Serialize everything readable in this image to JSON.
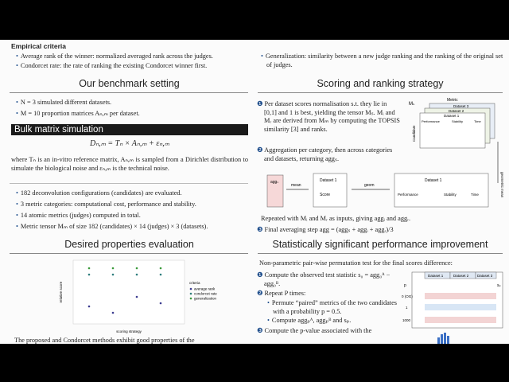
{
  "empirical_criteria": {
    "title": "Empirical criteria",
    "items": [
      "Average rank of the winner: normalized averaged rank across the judges.",
      "Condorcet rate: the rate of ranking the existing Condorcet winner first.",
      "Generalization: similarity between a new judge ranking and the ranking of the original set of judges."
    ]
  },
  "benchmark": {
    "title": "Our benchmark setting",
    "items": [
      "N = 3 simulated different datasets.",
      "M = 10 proportion matrices Aₙ,ₘ per dataset."
    ]
  },
  "bulk": {
    "title": "Bulk matrix simulation",
    "equation": "Dₙ,ₘ = Tₙ × Aₙ,ₘ + εₙ,ₘ",
    "text": "where Tₙ is an in-vitro reference matrix, Aₙ,ₘ is sampled from a Dirichlet distribution to simulate the biological noise and εₙ,ₘ is the technical noise.",
    "items": [
      "182 deconvolution configurations (candidates) are evaluated.",
      "3 metric categories: computational cost, performance and stability.",
      "14 atomic metrics (judges) computed in total.",
      "Metric tensor Mₘ of size 182 (candidates) × 14 (judges) × 3 (datasets)."
    ]
  },
  "desired": {
    "title": "Desired properties evaluation",
    "figure": {
      "y_label": "relative score",
      "x_label": "scoring strategy",
      "legend_title": "criteria",
      "legend": [
        "average rank",
        "condorcet rate",
        "generalization"
      ]
    },
    "footer": "The proposed and Condorcet methods exhibit good properties of the"
  },
  "scoring": {
    "title": "Scoring and ranking strategy",
    "steps": [
      "Per dataset scores normalisation s.t. they lie in [0,1] and 1 is best, yielding the tensor Mₛ. Mᵢ and Mᵣ are derived from Mₘ by computing the TOPSIS similarity [3] and ranks.",
      "Aggregation per category, then across categories and datasets, returning aggₛ."
    ],
    "repeat": "Repeated with Mᵢ and Mᵣ as inputs, giving aggᵢ and aggᵣ.",
    "final": "Final averaging step agg = (aggₛ + aggᵢ + aggᵣ)/3",
    "diagram": {
      "metric": "Metric",
      "dataset3": "Dataset 3",
      "dataset2": "Dataset 2",
      "dataset1": "Dataset 1",
      "candidate": "Candidate",
      "performance": "Performance",
      "stability": "Stability",
      "time": "Time",
      "ms": "Mₛ",
      "mean": "mean",
      "geom": "geom",
      "geometric_mean": "geometric mean",
      "score": "Score",
      "aggs": "aggₛ"
    }
  },
  "significance": {
    "title": "Statistically significant performance improvement",
    "intro": "Non-parametric pair-wise permutation test for the final scores difference:",
    "steps": [
      "Compute the observed test statistic s₀ = agg₀ᴬ − agg₀ᴮ.",
      "Repeat P times:",
      "Compute the p-value associated with the"
    ],
    "substeps": [
      "Permute “paired” metrics of the two candidates with a probability p = 0.5.",
      "Compute aggₚᴬ, aggₚᴮ and sₚ."
    ],
    "table": {
      "p": "p",
      "rows": [
        "0 (OG)",
        "1",
        "1000"
      ],
      "datasets": [
        "Dataset 1",
        "Dataset 2",
        "Dataset 3"
      ],
      "s": "sₚ"
    }
  }
}
